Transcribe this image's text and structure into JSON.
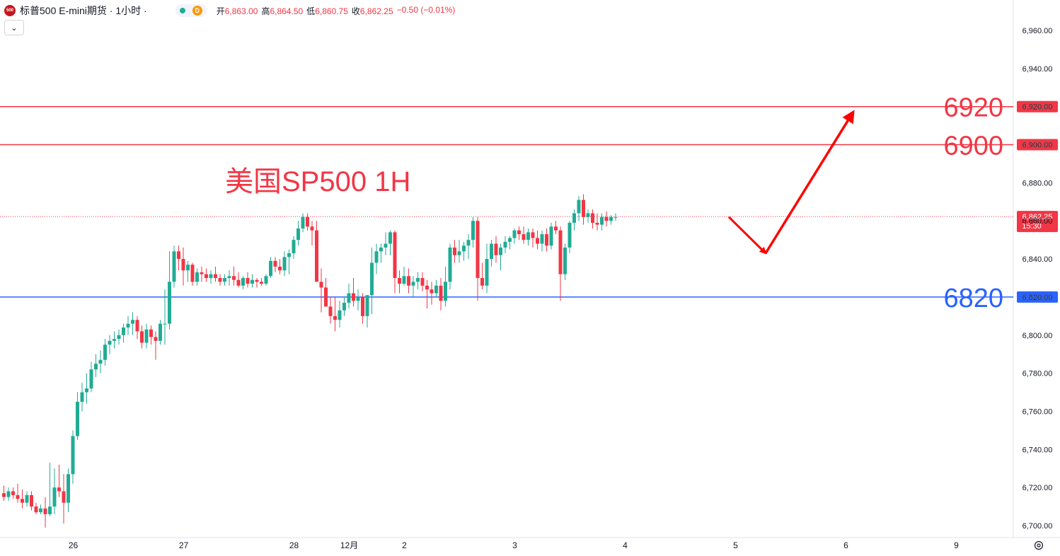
{
  "header": {
    "logo_text": "500",
    "title": "标普500 E-mini期货 · 1小时 ·",
    "status_dot": "green",
    "data_badge": "D",
    "ohlc": [
      {
        "label": "开",
        "value": "6,863.00"
      },
      {
        "label": "高",
        "value": "6,864.50"
      },
      {
        "label": "低",
        "value": "6,860.75"
      },
      {
        "label": "收",
        "value": "6,862.25"
      },
      {
        "label": "",
        "value": "−0.50 (−0.01%)"
      }
    ],
    "collapse_icon": "chevron-down-icon"
  },
  "colors": {
    "up": "#22ab94",
    "down": "#f23645",
    "resistance": "#f23645",
    "support": "#2962ff",
    "arrow": "#ff0000",
    "annotation": "#f23645"
  },
  "chart_data": {
    "type": "candlestick",
    "annotation_title": "美国SP500 1H",
    "ylim": [
      6690,
      6970
    ],
    "y_ticks": [
      6700,
      6720,
      6740,
      6760,
      6780,
      6800,
      6820,
      6840,
      6860,
      6880,
      6900,
      6920,
      6940,
      6960
    ],
    "y_tick_labels": [
      "6,700.00",
      "6,720.00",
      "6,740.00",
      "6,760.00",
      "6,780.00",
      "6,800.00",
      "6,820.00",
      "6,840.00",
      "6,860.00",
      "6,880.00",
      "6,900.00",
      "6,920.00",
      "6,940.00",
      "6,960.00"
    ],
    "x_tick_labels": [
      "26",
      "27",
      "28",
      "12月",
      "2",
      "3",
      "4",
      "5",
      "6",
      "9"
    ],
    "x_tick_bars": [
      15,
      39,
      63,
      75,
      87,
      111,
      135,
      159,
      183,
      207
    ],
    "horizontal_lines": [
      {
        "price": 6920,
        "label": "6920",
        "axis_label": "6,920.00",
        "color": "#f23645"
      },
      {
        "price": 6900,
        "label": "6900",
        "axis_label": "6,900.00",
        "color": "#f23645"
      },
      {
        "price": 6820,
        "label": "6820",
        "axis_label": "6,820.00",
        "color": "#2962ff"
      }
    ],
    "last_price": {
      "price": 6862.25,
      "label": "6,862.25",
      "countdown": "15:30"
    },
    "projection": [
      {
        "bar": 158,
        "price": 6862
      },
      {
        "bar": 166,
        "price": 6843
      },
      {
        "bar": 185,
        "price": 6917
      }
    ],
    "candles": [
      [
        6717,
        6721,
        6713,
        6715
      ],
      [
        6715,
        6720,
        6713,
        6718
      ],
      [
        6718,
        6720,
        6714,
        6716
      ],
      [
        6716,
        6722,
        6712,
        6714
      ],
      [
        6714,
        6719,
        6709,
        6712
      ],
      [
        6712,
        6718,
        6710,
        6716
      ],
      [
        6716,
        6718,
        6708,
        6710
      ],
      [
        6710,
        6712,
        6706,
        6707
      ],
      [
        6707,
        6711,
        6706,
        6709
      ],
      [
        6709,
        6715,
        6699,
        6706
      ],
      [
        6706,
        6733,
        6705,
        6710
      ],
      [
        6710,
        6730,
        6706,
        6720
      ],
      [
        6720,
        6732,
        6715,
        6718
      ],
      [
        6718,
        6727,
        6701,
        6712
      ],
      [
        6712,
        6730,
        6707,
        6727
      ],
      [
        6727,
        6750,
        6722,
        6747
      ],
      [
        6747,
        6770,
        6745,
        6765
      ],
      [
        6765,
        6775,
        6760,
        6770
      ],
      [
        6770,
        6780,
        6764,
        6772
      ],
      [
        6772,
        6786,
        6770,
        6782
      ],
      [
        6782,
        6790,
        6778,
        6785
      ],
      [
        6785,
        6792,
        6780,
        6787
      ],
      [
        6787,
        6798,
        6784,
        6795
      ],
      [
        6795,
        6800,
        6790,
        6797
      ],
      [
        6797,
        6802,
        6793,
        6798
      ],
      [
        6798,
        6803,
        6795,
        6800
      ],
      [
        6800,
        6806,
        6796,
        6804
      ],
      [
        6804,
        6810,
        6800,
        6806
      ],
      [
        6806,
        6812,
        6800,
        6808
      ],
      [
        6808,
        6810,
        6798,
        6802
      ],
      [
        6802,
        6805,
        6793,
        6796
      ],
      [
        6796,
        6806,
        6793,
        6803
      ],
      [
        6803,
        6805,
        6795,
        6799
      ],
      [
        6799,
        6802,
        6787,
        6797
      ],
      [
        6797,
        6808,
        6795,
        6806
      ],
      [
        6806,
        6824,
        6795,
        6806
      ],
      [
        6806,
        6844,
        6803,
        6828
      ],
      [
        6828,
        6847,
        6825,
        6844
      ],
      [
        6844,
        6847,
        6834,
        6840
      ],
      [
        6840,
        6846,
        6826,
        6834
      ],
      [
        6834,
        6839,
        6828,
        6837
      ],
      [
        6837,
        6838,
        6826,
        6828
      ],
      [
        6828,
        6835,
        6826,
        6833
      ],
      [
        6833,
        6836,
        6828,
        6832
      ],
      [
        6832,
        6835,
        6828,
        6830
      ],
      [
        6830,
        6834,
        6827,
        6832
      ],
      [
        6832,
        6836,
        6828,
        6830
      ],
      [
        6830,
        6832,
        6826,
        6828
      ],
      [
        6828,
        6832,
        6826,
        6830
      ],
      [
        6830,
        6834,
        6826,
        6831
      ],
      [
        6831,
        6836,
        6826,
        6829
      ],
      [
        6829,
        6833,
        6825,
        6826
      ],
      [
        6826,
        6831,
        6824,
        6830
      ],
      [
        6830,
        6833,
        6825,
        6827
      ],
      [
        6827,
        6832,
        6825,
        6829
      ],
      [
        6829,
        6830,
        6825,
        6828
      ],
      [
        6828,
        6830,
        6826,
        6827
      ],
      [
        6827,
        6832,
        6826,
        6831
      ],
      [
        6831,
        6841,
        6830,
        6839
      ],
      [
        6839,
        6841,
        6833,
        6836
      ],
      [
        6836,
        6840,
        6832,
        6834
      ],
      [
        6834,
        6844,
        6831,
        6841
      ],
      [
        6841,
        6845,
        6832,
        6843
      ],
      [
        6843,
        6852,
        6840,
        6850
      ],
      [
        6850,
        6860,
        6847,
        6856
      ],
      [
        6856,
        6864,
        6854,
        6862
      ],
      [
        6862,
        6864,
        6855,
        6857
      ],
      [
        6857,
        6860,
        6847,
        6855
      ],
      [
        6855,
        6860,
        6828,
        6828
      ],
      [
        6828,
        6835,
        6812,
        6825
      ],
      [
        6825,
        6830,
        6816,
        6815
      ],
      [
        6815,
        6820,
        6806,
        6810
      ],
      [
        6810,
        6820,
        6802,
        6808
      ],
      [
        6808,
        6818,
        6804,
        6813
      ],
      [
        6813,
        6820,
        6810,
        6817
      ],
      [
        6817,
        6827,
        6814,
        6822
      ],
      [
        6822,
        6830,
        6815,
        6818
      ],
      [
        6818,
        6824,
        6813,
        6820
      ],
      [
        6820,
        6822,
        6806,
        6810
      ],
      [
        6810,
        6821,
        6804,
        6821
      ],
      [
        6821,
        6846,
        6811,
        6838
      ],
      [
        6838,
        6848,
        6832,
        6844
      ],
      [
        6844,
        6848,
        6838,
        6846
      ],
      [
        6846,
        6854,
        6842,
        6848
      ],
      [
        6848,
        6855,
        6842,
        6854
      ],
      [
        6854,
        6855,
        6822,
        6830
      ],
      [
        6830,
        6834,
        6822,
        6827
      ],
      [
        6827,
        6836,
        6826,
        6831
      ],
      [
        6831,
        6835,
        6822,
        6826
      ],
      [
        6826,
        6831,
        6820,
        6828
      ],
      [
        6828,
        6833,
        6824,
        6830
      ],
      [
        6830,
        6833,
        6823,
        6826
      ],
      [
        6826,
        6829,
        6814,
        6824
      ],
      [
        6824,
        6828,
        6816,
        6822
      ],
      [
        6822,
        6829,
        6820,
        6826
      ],
      [
        6826,
        6830,
        6813,
        6818
      ],
      [
        6818,
        6836,
        6815,
        6828
      ],
      [
        6828,
        6848,
        6824,
        6846
      ],
      [
        6846,
        6850,
        6838,
        6842
      ],
      [
        6842,
        6850,
        6838,
        6844
      ],
      [
        6844,
        6849,
        6839,
        6847
      ],
      [
        6847,
        6853,
        6840,
        6850
      ],
      [
        6850,
        6862,
        6846,
        6860
      ],
      [
        6860,
        6862,
        6818,
        6830
      ],
      [
        6830,
        6838,
        6824,
        6826
      ],
      [
        6826,
        6848,
        6822,
        6840
      ],
      [
        6840,
        6850,
        6836,
        6848
      ],
      [
        6848,
        6852,
        6838,
        6842
      ],
      [
        6842,
        6848,
        6834,
        6846
      ],
      [
        6846,
        6852,
        6843,
        6849
      ],
      [
        6849,
        6852,
        6845,
        6851
      ],
      [
        6851,
        6856,
        6848,
        6855
      ],
      [
        6855,
        6857,
        6850,
        6853
      ],
      [
        6853,
        6857,
        6848,
        6850
      ],
      [
        6850,
        6856,
        6847,
        6854
      ],
      [
        6854,
        6856,
        6846,
        6851
      ],
      [
        6851,
        6855,
        6845,
        6848
      ],
      [
        6848,
        6855,
        6844,
        6853
      ],
      [
        6853,
        6856,
        6844,
        6847
      ],
      [
        6847,
        6859,
        6845,
        6857
      ],
      [
        6857,
        6860,
        6853,
        6855
      ],
      [
        6855,
        6857,
        6818,
        6832
      ],
      [
        6832,
        6848,
        6829,
        6846
      ],
      [
        6846,
        6860,
        6843,
        6859
      ],
      [
        6859,
        6866,
        6855,
        6864
      ],
      [
        6864,
        6873,
        6860,
        6871
      ],
      [
        6871,
        6874,
        6858,
        6862
      ],
      [
        6862,
        6866,
        6859,
        6864
      ],
      [
        6864,
        6866,
        6856,
        6859
      ],
      [
        6859,
        6864,
        6855,
        6858
      ],
      [
        6858,
        6864,
        6855,
        6862
      ],
      [
        6862,
        6865,
        6857,
        6860
      ],
      [
        6860,
        6863,
        6858,
        6862
      ],
      [
        6862,
        6864,
        6860,
        6862
      ]
    ]
  }
}
